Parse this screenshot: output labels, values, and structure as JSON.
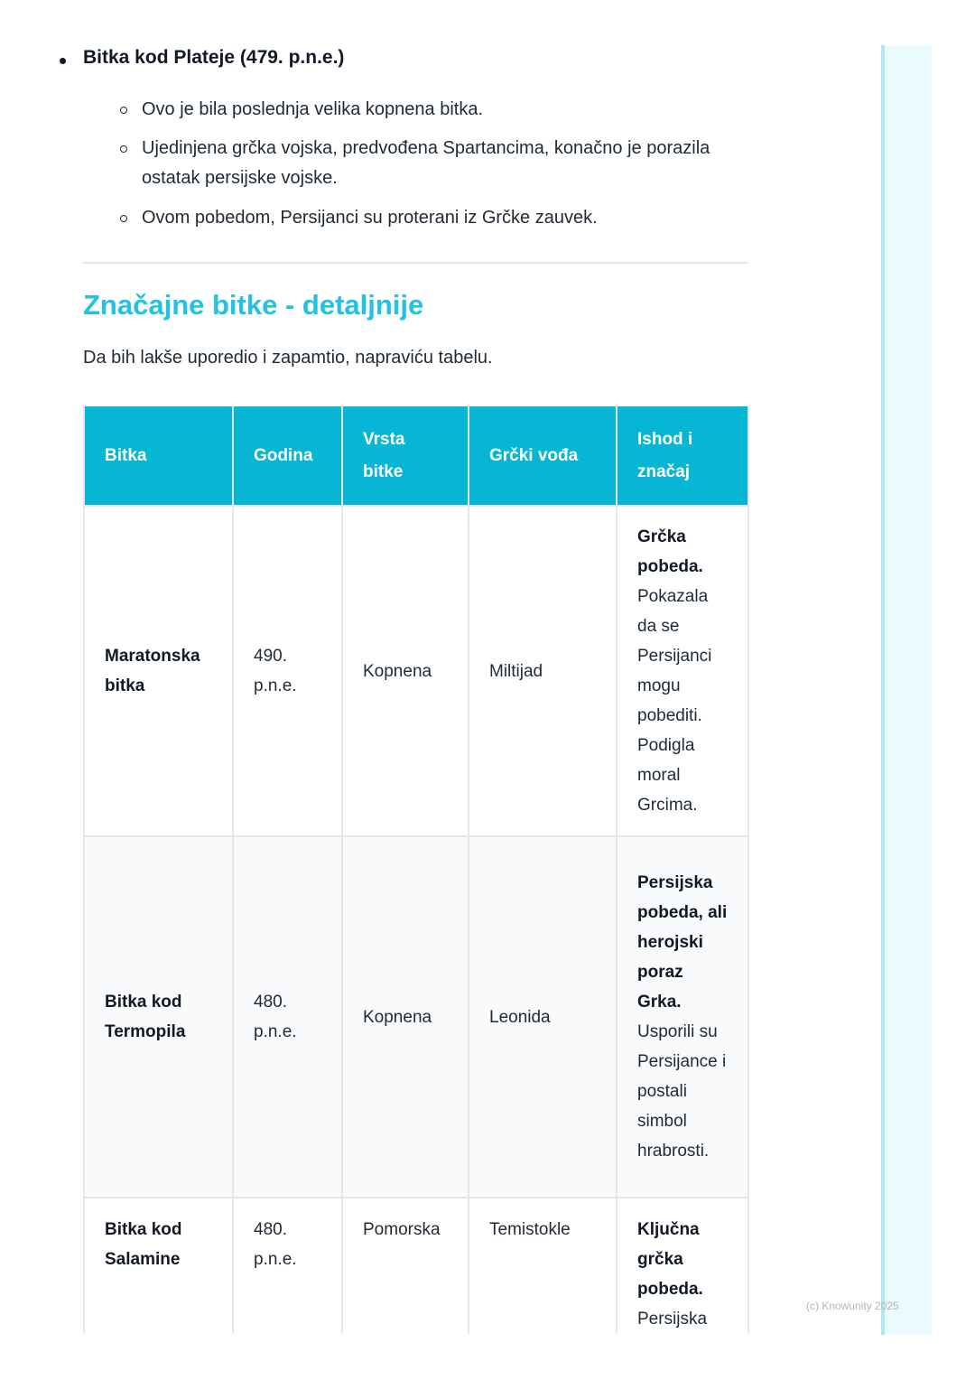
{
  "section_top": {
    "heading": "Bitka kod Plateje (479. p.n.e.)",
    "items": [
      "Ovo je bila poslednja velika kopnena bitka.",
      "Ujedinjena grčka vojska, predvođena Spartancima, konačno je porazila ostatak persijske vojske.",
      "Ovom pobedom, Persijanci su proterani iz Grčke zauvek."
    ]
  },
  "title": "Značajne bitke - detaljnije",
  "intro": "Da bih lakše uporedio i zapamtio, napraviću tabelu.",
  "table": {
    "headers": [
      "Bitka",
      "Godina",
      "Vrsta bitke",
      "Grčki vođa",
      "Ishod i značaj"
    ],
    "rows": [
      {
        "battle": "Maratonska bitka",
        "year": "490. p.n.e.",
        "type": "Kopnena",
        "leader": "Miltijad",
        "outcome_bold": "Grčka pobeda.",
        "outcome": "Pokazala da se Persijanci mogu pobediti. Podigla moral Grcima."
      },
      {
        "battle": "Bitka kod Termopila",
        "year": "480. p.n.e.",
        "type": "Kopnena",
        "leader": "Leonida",
        "outcome_bold": "Persijska pobeda, ali herojski poraz Grka.",
        "outcome": "Usporili su Persijance i postali simbol hrabrosti."
      },
      {
        "battle": "Bitka kod Salamine",
        "year": "480. p.n.e.",
        "type": "Pomorska",
        "leader": "Temistokle",
        "outcome_bold": "Ključna grčka pobeda.",
        "outcome": "Persijska"
      }
    ]
  },
  "footer": "(c) Knowunity 2025",
  "colors": {
    "accent": "#22c3e0",
    "header_bg": "#06b6d4",
    "sidebar": "#eafbfd"
  }
}
